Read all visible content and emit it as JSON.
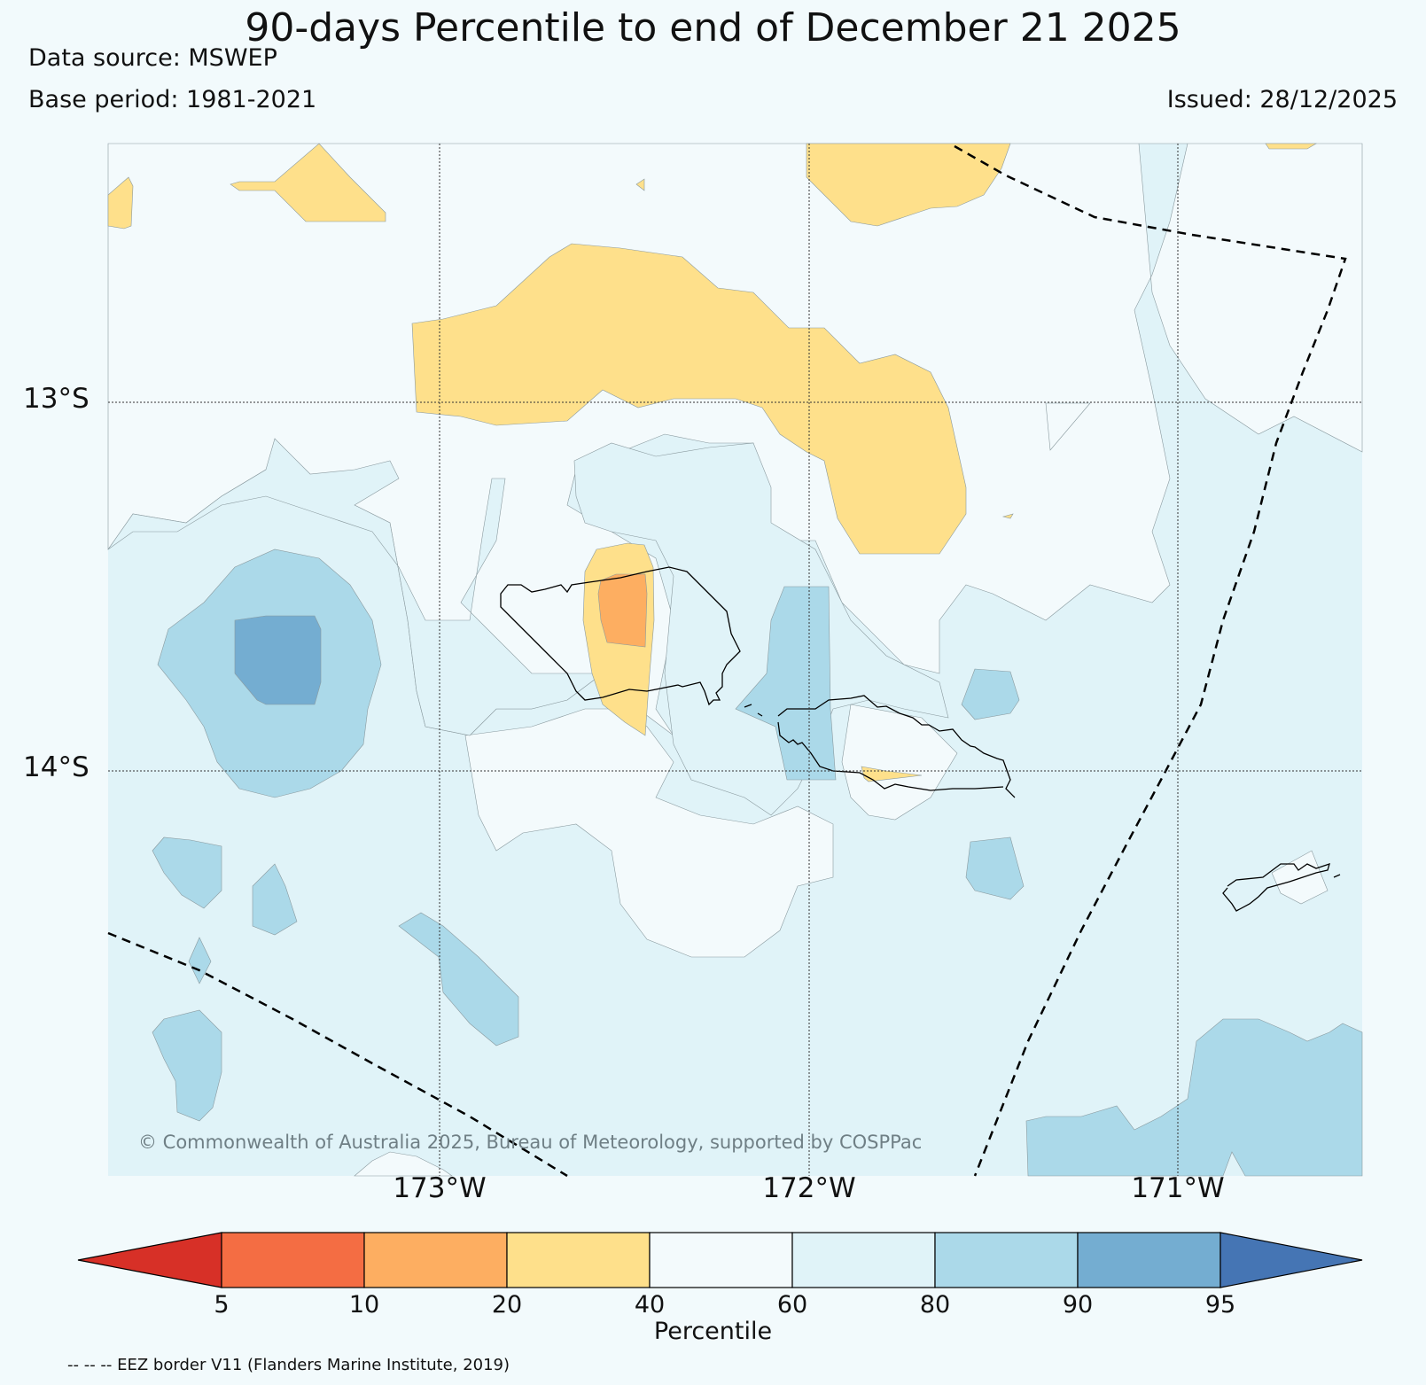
{
  "title": "90-days Percentile to end of December 21 2025",
  "data_source": "Data source: MSWEP",
  "base_period": "Base period: 1981-2021",
  "issued": "Issued: 28/12/2025",
  "latitudes": [
    "13°S",
    "14°S"
  ],
  "longitudes": [
    "173°W",
    "172°W",
    "171°W"
  ],
  "copyright": "© Commonwealth of Australia 2025, Bureau of Meteorology, supported by COSPPac",
  "colorbar": {
    "label": "Percentile",
    "ticks": [
      "5",
      "10",
      "20",
      "40",
      "60",
      "80",
      "90",
      "95"
    ],
    "colors": [
      "#d73027",
      "#f46d43",
      "#fdae61",
      "#fee08b",
      "#f3fafc",
      "#e0f3f8",
      "#abd9e9",
      "#74add1",
      "#4575b4"
    ]
  },
  "eez_note": "-- -- -- EEZ border V11 (Flanders Marine Institute, 2019)",
  "colors": {
    "background": "#f2fafc",
    "band_20_40": "#fee08b",
    "band_10_20": "#fdae61",
    "band_40_60": "#f3fafc",
    "band_60_80": "#e0f3f8",
    "band_80_90": "#abd9e9",
    "band_90_95": "#74add1"
  }
}
